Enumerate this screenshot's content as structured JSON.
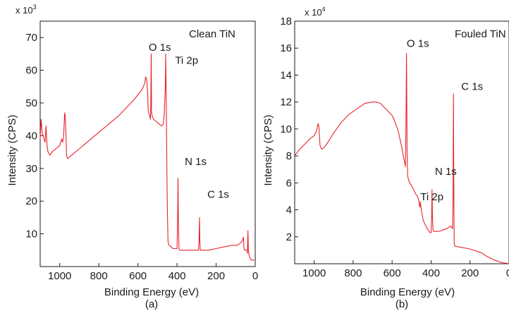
{
  "chart_data": [
    {
      "type": "line",
      "caption": "(a)",
      "title": "Clean TiN",
      "xlabel": "Binding Energy (eV)",
      "ylabel": "Intensity (CPS)",
      "y_multiplier": "x 10",
      "y_multiplier_exp": "3",
      "xlim": [
        1100,
        0
      ],
      "ylim": [
        0,
        75
      ],
      "xticks": [
        1000,
        800,
        600,
        400,
        200,
        0
      ],
      "yticks": [
        10,
        20,
        30,
        40,
        50,
        60,
        70
      ],
      "grid": false,
      "line_color": "#e8232a",
      "series": [
        {
          "x": [
            1100,
            1095,
            1090,
            1080,
            1075,
            1070,
            1065,
            1060,
            1050,
            1040,
            1020,
            1000,
            990,
            985,
            980,
            975,
            972,
            968,
            965,
            960,
            950,
            930,
            900,
            860,
            820,
            780,
            740,
            700,
            660,
            620,
            600,
            580,
            565,
            560,
            555,
            550,
            548,
            545,
            540,
            536,
            534,
            532,
            530,
            527,
            520,
            500,
            480,
            470,
            465,
            460,
            458,
            456,
            454,
            452,
            450,
            448,
            446,
            444,
            440,
            430,
            420,
            410,
            405,
            400,
            397,
            395,
            393,
            390,
            385,
            380,
            360,
            340,
            320,
            300,
            290,
            287,
            285,
            283,
            281,
            278,
            275,
            260,
            240,
            200,
            160,
            120,
            90,
            80,
            70,
            65,
            60,
            58,
            55,
            50,
            45,
            42,
            40,
            37,
            35,
            30,
            20,
            10,
            5
          ],
          "y": [
            39,
            45,
            41,
            39,
            38,
            43,
            37,
            35,
            34,
            35,
            36,
            37,
            39,
            38,
            40,
            47,
            46,
            40,
            34,
            33,
            33.5,
            34.5,
            36,
            38,
            40,
            42,
            44,
            46,
            48.5,
            51,
            52.5,
            54,
            56,
            58,
            57,
            53,
            48,
            47,
            46,
            45,
            50,
            65,
            47,
            46,
            45,
            44,
            43,
            43.5,
            47,
            55,
            65,
            55,
            45,
            30,
            20,
            13,
            8,
            7,
            6.5,
            6,
            5.5,
            5.5,
            5.5,
            5.5,
            14,
            27,
            14,
            5.5,
            5,
            5,
            5,
            5,
            5,
            5,
            5,
            8,
            15,
            8,
            5,
            5,
            5,
            5,
            5,
            5.5,
            6,
            6.5,
            6.5,
            7,
            7.5,
            8,
            9,
            6,
            5,
            5,
            5,
            5,
            4,
            11,
            5,
            3,
            2,
            2,
            2
          ]
        }
      ],
      "annotations": [
        {
          "text": "O 1s",
          "x": 545,
          "y": 66
        },
        {
          "text": "Ti 2p",
          "x": 410,
          "y": 62
        },
        {
          "text": "N 1s",
          "x": 360,
          "y": 31
        },
        {
          "text": "C 1s",
          "x": 245,
          "y": 21
        }
      ]
    },
    {
      "type": "line",
      "caption": "(b)",
      "title": "Fouled TiN",
      "xlabel": "Binding Energy (eV)",
      "ylabel": "Intensity (CPS)",
      "y_multiplier": "x 10",
      "y_multiplier_exp": "4",
      "xlim": [
        1100,
        0
      ],
      "ylim": [
        0,
        18
      ],
      "xticks": [
        1000,
        800,
        600,
        400,
        200,
        0
      ],
      "yticks": [
        2,
        4,
        6,
        8,
        10,
        12,
        14,
        16,
        18
      ],
      "grid": false,
      "line_color": "#e8232a",
      "series": [
        {
          "x": [
            1100,
            1090,
            1080,
            1060,
            1040,
            1020,
            1000,
            990,
            985,
            980,
            976,
            973,
            970,
            965,
            960,
            950,
            930,
            900,
            860,
            820,
            780,
            740,
            700,
            680,
            660,
            640,
            620,
            600,
            590,
            580,
            570,
            560,
            550,
            545,
            540,
            535,
            532,
            529,
            526,
            523,
            520,
            515,
            510,
            500,
            490,
            480,
            470,
            465,
            462,
            460,
            457,
            455,
            450,
            440,
            420,
            410,
            405,
            400,
            397,
            395,
            393,
            390,
            386,
            380,
            360,
            340,
            320,
            300,
            290,
            287,
            285,
            283,
            281,
            278,
            275,
            260,
            240,
            220,
            200,
            180,
            160,
            140,
            120,
            100,
            80,
            60,
            40,
            20,
            0
          ],
          "y": [
            8,
            8.2,
            8.4,
            8.7,
            9,
            9.3,
            9.5,
            9.8,
            10,
            10.4,
            10.2,
            9.5,
            8.8,
            8.6,
            8.5,
            8.6,
            9,
            9.7,
            10.5,
            11.1,
            11.5,
            11.9,
            12.0,
            12.0,
            11.9,
            11.6,
            11.3,
            11.0,
            10.7,
            10.3,
            9.9,
            9.3,
            8.6,
            8.2,
            7.8,
            7.5,
            7.2,
            10,
            15.6,
            8,
            6.5,
            6.2,
            6.0,
            5.8,
            5.5,
            5.2,
            5.0,
            4.8,
            4.6,
            4.4,
            4.2,
            4.6,
            4.0,
            3.2,
            2.6,
            2.4,
            2.3,
            2.3,
            3.5,
            5.5,
            3.5,
            2.5,
            2.4,
            2.4,
            2.4,
            2.5,
            2.6,
            2.8,
            2.6,
            5,
            12.6,
            5,
            1.5,
            1.3,
            1.3,
            1.25,
            1.2,
            1.15,
            1.1,
            1.0,
            0.9,
            0.8,
            0.6,
            0.45,
            0.3,
            0.2,
            0.1,
            0.05,
            0
          ]
        }
      ],
      "annotations": [
        {
          "text": "O 1s",
          "x": 525,
          "y": 16.1
        },
        {
          "text": "Ti 2p",
          "x": 455,
          "y": 4.7
        },
        {
          "text": "N 1s",
          "x": 380,
          "y": 6.6
        },
        {
          "text": "C 1s",
          "x": 245,
          "y": 12.9
        }
      ]
    }
  ]
}
